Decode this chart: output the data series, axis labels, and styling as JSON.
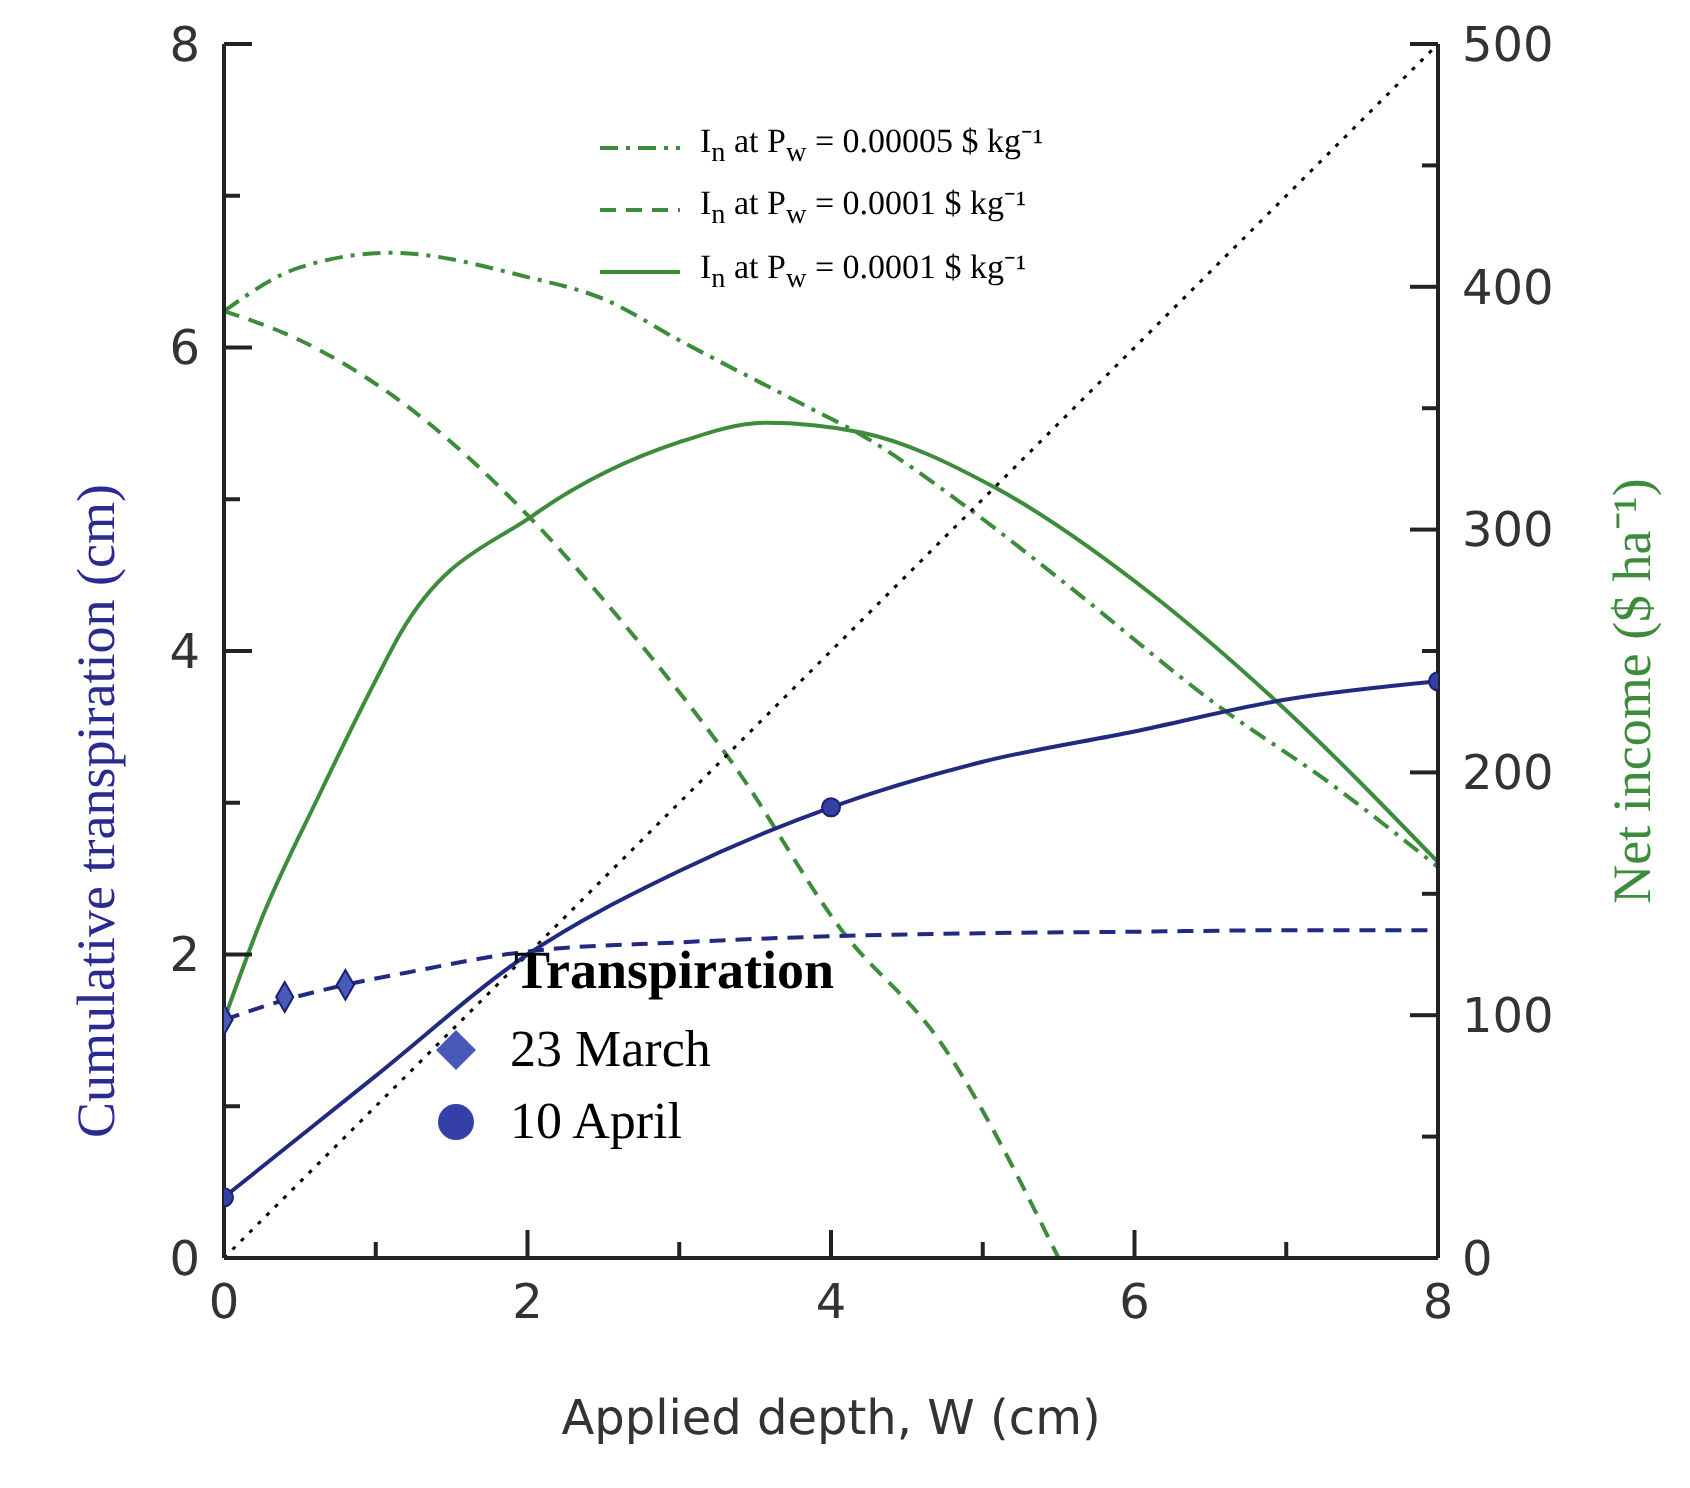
{
  "chart_data": {
    "type": "line",
    "xlabel": "Applied depth, W (cm)",
    "ylabel": "Cumulative transpiration (cm)",
    "y2label": "Net income ($ ha⁻¹)",
    "legend_title": "Transpiration",
    "legend": "top",
    "xlim": [
      0,
      8
    ],
    "xticks": [
      0,
      {
        "value": 1,
        "label": null
      },
      2,
      {
        "value": 3,
        "label": null
      },
      4,
      {
        "value": 5,
        "label": null
      },
      6,
      {
        "value": 7,
        "label": null
      },
      8
    ],
    "ylim": [
      0,
      8
    ],
    "yticks": [
      0,
      {
        "value": 1,
        "label": null
      },
      2,
      {
        "value": 3,
        "label": null
      },
      4,
      {
        "value": 5,
        "label": null
      },
      6,
      {
        "value": 7,
        "label": null
      },
      8
    ],
    "y2lim": [
      0,
      500
    ],
    "y2ticks": [
      0,
      {
        "value": 50,
        "label": null
      },
      100,
      {
        "value": 150,
        "label": null
      },
      200,
      {
        "value": 250,
        "label": null
      },
      300,
      {
        "value": 350,
        "label": null
      },
      400,
      {
        "value": 450,
        "label": null
      },
      500
    ],
    "series": [
      {
        "axis": "y2",
        "name": "I$_{n}$ at P$_{w}$ = 0.00005 $ kg⁻¹",
        "color": "#3c8c3c",
        "line_style": "dashdot",
        "marker": "none",
        "x": [
          0,
          0.5,
          1.1,
          2,
          2.5,
          3,
          3.8,
          4.2,
          4.9,
          5.5,
          6.56,
          7.3,
          8
        ],
        "values": [
          390,
          408,
          414,
          404,
          395,
          378,
          352,
          339,
          309,
          280,
          227,
          195,
          161
        ]
      },
      {
        "axis": "y2",
        "name": "I$_{n}$ at P$_{w}$ = 0.0001 $ kg⁻¹",
        "color": "#3c8c3c",
        "line_style": "dashed",
        "marker": "none",
        "x": [
          0,
          0.5,
          1.16,
          2,
          2.65,
          3.36,
          4.07,
          4.72,
          5.5
        ],
        "values": [
          390,
          378,
          353,
          306,
          260,
          203,
          135,
          89,
          0
        ]
      },
      {
        "axis": "y2",
        "name": "I$_{n}$ at P$_{w}$ = 0.0001 $ kg⁻¹",
        "color": "#3c8c3c",
        "line_style": "solid",
        "marker": "none",
        "x": [
          0,
          0.25,
          0.63,
          1,
          1.16,
          2.04,
          3,
          3.57,
          4.2,
          5.09,
          6.1,
          6.94,
          8
        ],
        "values": [
          98,
          140,
          191,
          238,
          257,
          306,
          336,
          344,
          340,
          317,
          274,
          229,
          163
        ]
      },
      {
        "axis": "y",
        "color": "#000000",
        "line_style": "dotted",
        "marker": "none",
        "x": [
          0,
          8
        ],
        "values": [
          0,
          8
        ]
      },
      {
        "axis": "y",
        "color": "#1f2a80",
        "line_style": "dashed",
        "marker": "none",
        "x": [
          0,
          0.4,
          0.8,
          1.2,
          2,
          3,
          4,
          5,
          6,
          7,
          8
        ],
        "values": [
          1.57,
          1.7,
          1.8,
          1.88,
          2.02,
          2.08,
          2.12,
          2.14,
          2.15,
          2.16,
          2.16
        ]
      },
      {
        "axis": "y",
        "color": "#1f2a80",
        "line_style": "solid",
        "marker": "none",
        "x": [
          0,
          1,
          2,
          3,
          4,
          5,
          6,
          7,
          8
        ],
        "values": [
          0.4,
          1.2,
          2.0,
          2.55,
          2.97,
          3.27,
          3.47,
          3.68,
          3.8
        ]
      },
      {
        "type": "scatter",
        "axis": "y",
        "name": "23 March",
        "color": "#4a58b8",
        "marker": "diamond",
        "x": [
          0,
          0.4,
          0.8
        ],
        "values": [
          1.57,
          1.72,
          1.8
        ]
      },
      {
        "type": "scatter",
        "axis": "y",
        "name": "10 April",
        "color": "#3440a8",
        "marker": "circle",
        "x": [
          0,
          4,
          8
        ],
        "values": [
          0.4,
          2.97,
          3.8
        ]
      }
    ]
  }
}
